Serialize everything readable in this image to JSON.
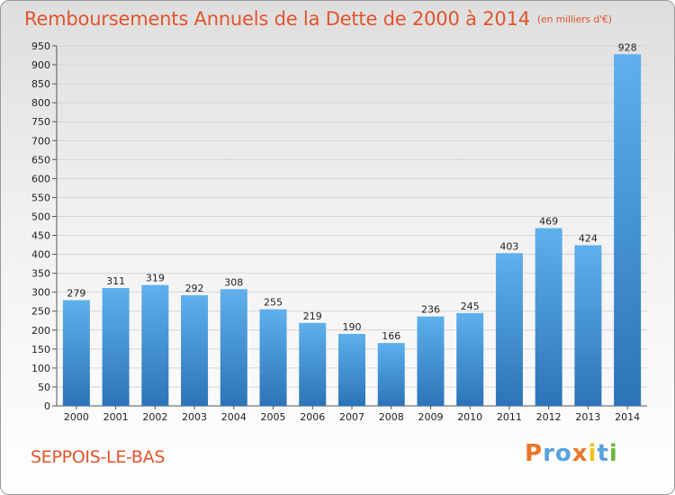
{
  "title": "Remboursements Annuels de la Dette de 2000 à 2014",
  "unit_note": "(en milliers d'€)",
  "city": "SEPPOIS-LE-BAS",
  "logo": {
    "text": "Proxiti",
    "letter_colors": [
      "#e8762b",
      "#5aa2dd",
      "#5aa2dd",
      "#e8762b",
      "#f2c21b",
      "#5aa2dd",
      "#6ab83f"
    ]
  },
  "colors": {
    "bar": "#3f92d6",
    "bar_light": "#5eaee9",
    "bar_dark": "#2a72b6",
    "title": "#e2542c"
  },
  "chart_data": {
    "type": "bar",
    "categories": [
      "2000",
      "2001",
      "2002",
      "2003",
      "2004",
      "2005",
      "2006",
      "2007",
      "2008",
      "2009",
      "2010",
      "2011",
      "2012",
      "2013",
      "2014"
    ],
    "values": [
      279,
      311,
      319,
      292,
      308,
      255,
      219,
      190,
      166,
      236,
      245,
      403,
      469,
      424,
      928
    ],
    "ylim": [
      0,
      950
    ],
    "yticks": [
      0,
      50,
      100,
      150,
      200,
      250,
      300,
      350,
      400,
      450,
      500,
      550,
      600,
      650,
      700,
      750,
      800,
      850,
      900,
      950
    ],
    "grid": true,
    "xlabel": "",
    "ylabel": ""
  }
}
